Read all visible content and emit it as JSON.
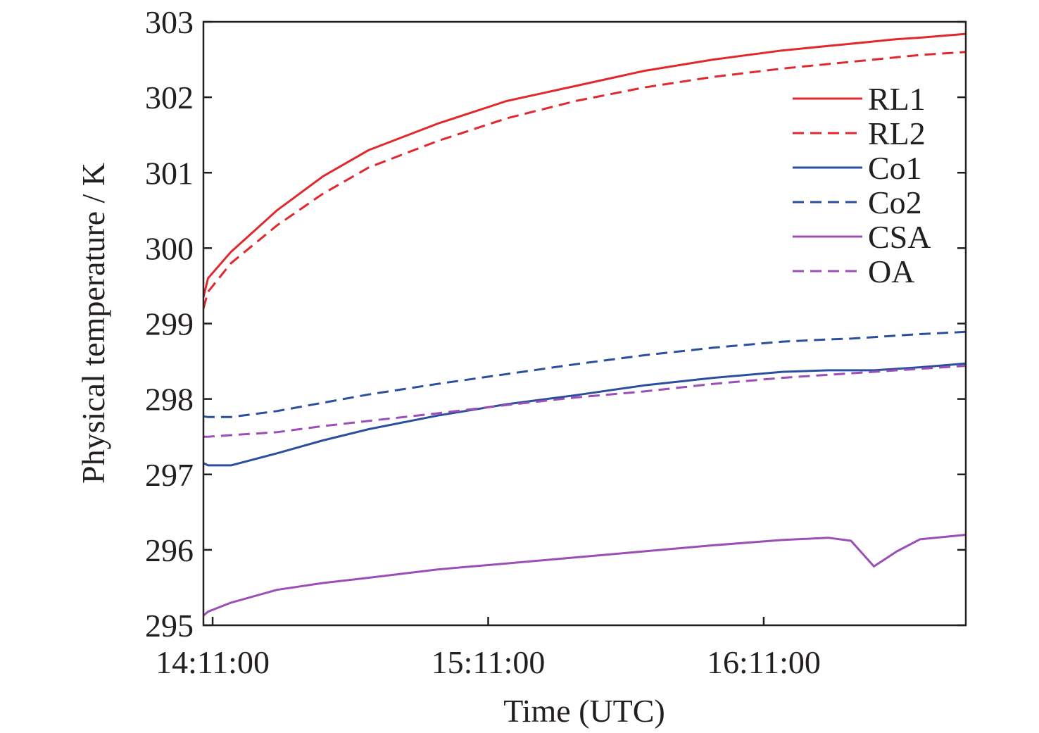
{
  "chart_data": {
    "type": "line",
    "title": "",
    "xlabel": "Time (UTC)",
    "ylabel": "Physical temperature / K",
    "x_unit": "minutes",
    "x_range": [
      "14:09:00",
      "16:55:00"
    ],
    "xticks": [
      "14:11:00",
      "15:11:00",
      "16:11:00"
    ],
    "ylim": [
      295,
      303
    ],
    "yticks": [
      295,
      296,
      297,
      298,
      299,
      300,
      301,
      302,
      303
    ],
    "grid": false,
    "legend_position": "top-right",
    "x": [
      "14:09:00",
      "14:10:00",
      "14:15:00",
      "14:25:00",
      "14:35:00",
      "14:45:00",
      "15:00:00",
      "15:15:00",
      "15:30:00",
      "15:45:00",
      "16:00:00",
      "16:15:00",
      "16:25:00",
      "16:30:00",
      "16:35:00",
      "16:40:00",
      "16:45:00",
      "16:55:00"
    ],
    "series": [
      {
        "name": "RL1",
        "style": "solid",
        "color": "#e0282d",
        "values": [
          299.35,
          299.6,
          299.95,
          300.5,
          300.95,
          301.3,
          301.65,
          301.95,
          302.15,
          302.35,
          302.5,
          302.62,
          302.68,
          302.71,
          302.74,
          302.77,
          302.79,
          302.84
        ]
      },
      {
        "name": "RL2",
        "style": "dashed",
        "color": "#e0282d",
        "values": [
          299.2,
          299.42,
          299.8,
          300.3,
          300.72,
          301.07,
          301.42,
          301.72,
          301.95,
          302.13,
          302.27,
          302.38,
          302.44,
          302.47,
          302.5,
          302.53,
          302.56,
          302.6
        ]
      },
      {
        "name": "Co1",
        "style": "solid",
        "color": "#2b4f9e",
        "values": [
          297.15,
          297.12,
          297.12,
          297.28,
          297.45,
          297.6,
          297.78,
          297.93,
          298.05,
          298.18,
          298.28,
          298.36,
          298.38,
          298.38,
          298.38,
          298.4,
          298.42,
          298.47
        ]
      },
      {
        "name": "Co2",
        "style": "dashed",
        "color": "#2b4f9e",
        "values": [
          297.77,
          297.76,
          297.76,
          297.84,
          297.95,
          298.06,
          298.2,
          298.33,
          298.46,
          298.58,
          298.68,
          298.76,
          298.79,
          298.8,
          298.82,
          298.84,
          298.86,
          298.89
        ]
      },
      {
        "name": "CSA",
        "style": "solid",
        "color": "#9b4fb6",
        "values": [
          295.13,
          295.18,
          295.3,
          295.47,
          295.56,
          295.63,
          295.74,
          295.82,
          295.9,
          295.98,
          296.06,
          296.13,
          296.16,
          296.12,
          295.78,
          295.98,
          296.14,
          296.2
        ]
      },
      {
        "name": "OA",
        "style": "dashed",
        "color": "#9b4fb6",
        "values": [
          297.5,
          297.5,
          297.52,
          297.56,
          297.64,
          297.71,
          297.81,
          297.92,
          298.02,
          298.1,
          298.2,
          298.28,
          298.32,
          298.34,
          298.36,
          298.38,
          298.4,
          298.44
        ]
      }
    ]
  }
}
